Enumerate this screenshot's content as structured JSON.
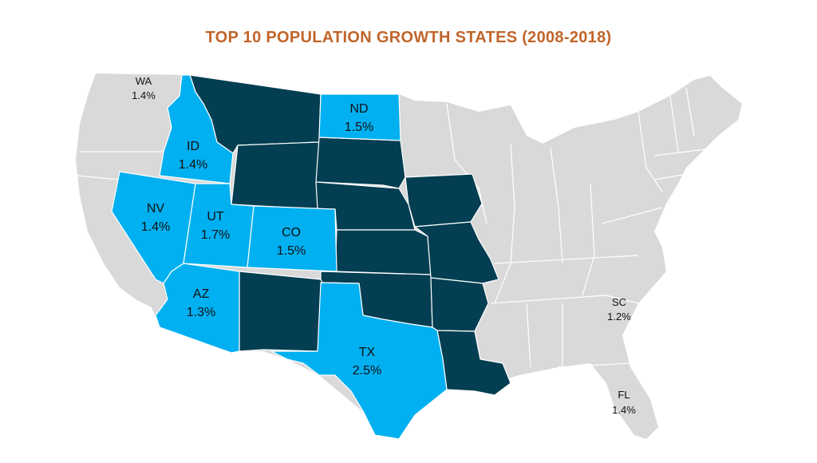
{
  "title": "TOP 10 POPULATION GROWTH STATES (2008-2018)",
  "colors": {
    "title": "#c0652a",
    "base_land": "#d9d9d9",
    "highlight": "#00b0f0",
    "dark": "#033e52",
    "label_text": "#111111"
  },
  "states": {
    "WA": {
      "abbr": "WA",
      "value": "1.4%"
    },
    "ID": {
      "abbr": "ID",
      "value": "1.4%"
    },
    "ND": {
      "abbr": "ND",
      "value": "1.5%"
    },
    "NV": {
      "abbr": "NV",
      "value": "1.4%"
    },
    "UT": {
      "abbr": "UT",
      "value": "1.7%"
    },
    "CO": {
      "abbr": "CO",
      "value": "1.5%"
    },
    "AZ": {
      "abbr": "AZ",
      "value": "1.3%"
    },
    "TX": {
      "abbr": "TX",
      "value": "2.5%"
    },
    "SC": {
      "abbr": "SC",
      "value": "1.2%"
    },
    "FL": {
      "abbr": "FL",
      "value": "1.4%"
    }
  }
}
